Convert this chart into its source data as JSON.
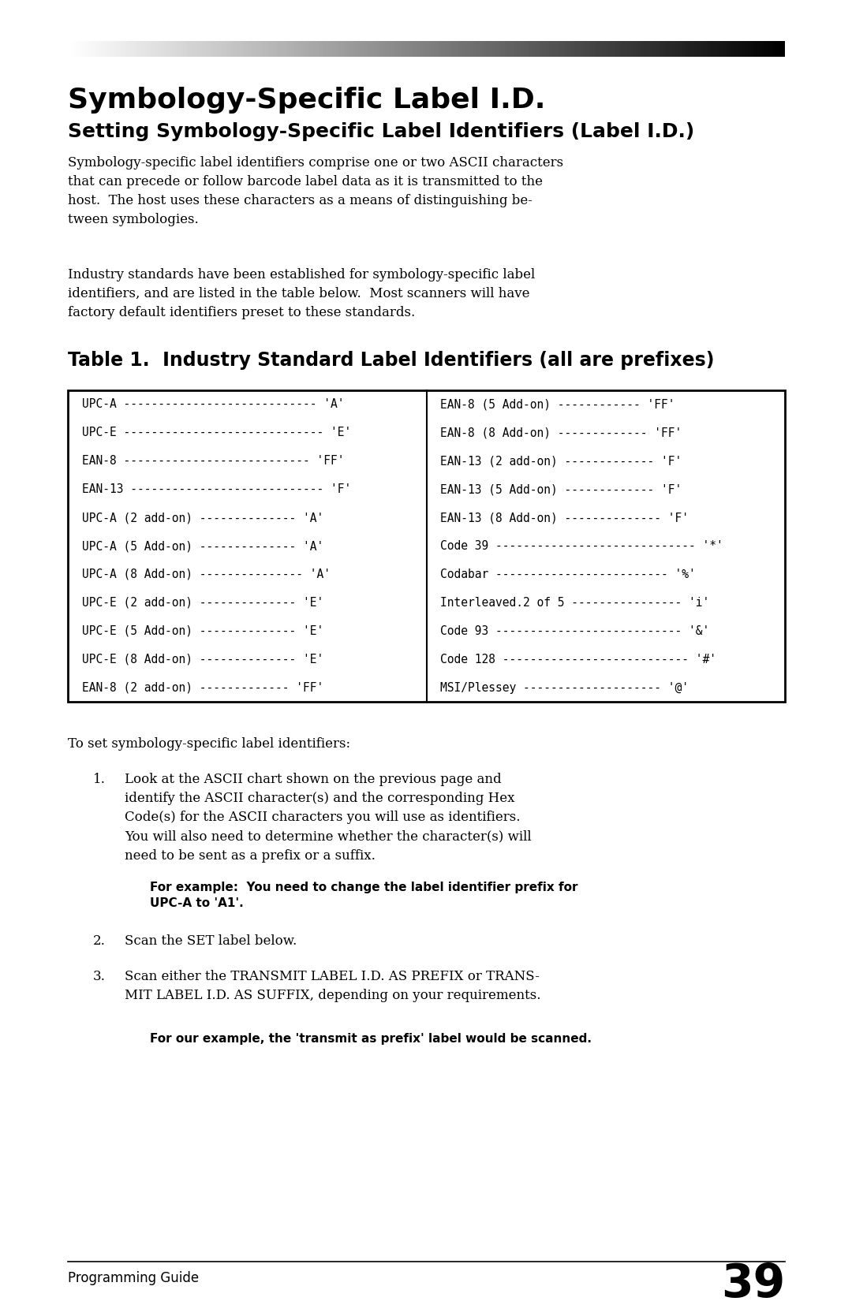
{
  "bg_color": "#ffffff",
  "title_main": "Symbology-Specific Label I.D.",
  "title_sub": "Setting Symbology-Specific Label Identifiers (Label I.D.)",
  "body_text1": "Symbology-specific label identifiers comprise one or two ASCII characters\nthat can precede or follow barcode label data as it is transmitted to the\nhost.  The host uses these characters as a means of distinguishing be-\ntween symbologies.",
  "body_text2": "Industry standards have been established for symbology-specific label\nidentifiers, and are listed in the table below.  Most scanners will have\nfactory default identifiers preset to these standards.",
  "table_title": "Table 1.  Industry Standard Label Identifiers (all are prefixes)",
  "left_col": [
    [
      "UPC-A",
      "----------------------------",
      "'A'"
    ],
    [
      "UPC-E",
      "-----------------------------",
      "'E'"
    ],
    [
      "EAN-8",
      "---------------------------",
      "'FF'"
    ],
    [
      "EAN-13",
      "----------------------------",
      "'F'"
    ],
    [
      "UPC-A (2 add-on)",
      "--------------",
      "'A'"
    ],
    [
      "UPC-A (5 Add-on)",
      "--------------",
      "'A'"
    ],
    [
      "UPC-A (8 Add-on)",
      "---------------",
      "'A'"
    ],
    [
      "UPC-E (2 add-on)",
      "--------------",
      "'E'"
    ],
    [
      "UPC-E (5 Add-on)",
      "--------------",
      "'E'"
    ],
    [
      "UPC-E (8 Add-on)",
      "--------------",
      "'E'"
    ],
    [
      "EAN-8 (2 add-on)",
      "-------------",
      "'FF'"
    ]
  ],
  "right_col": [
    [
      "EAN-8 (5 Add-on)",
      "------------",
      "'FF'"
    ],
    [
      "EAN-8 (8 Add-on)",
      "-------------",
      "'FF'"
    ],
    [
      "EAN-13 (2 add-on)",
      "-------------",
      "'F'"
    ],
    [
      "EAN-13 (5 Add-on)",
      "-------------",
      "'F'"
    ],
    [
      "EAN-13 (8 Add-on)",
      "--------------",
      "'F'"
    ],
    [
      "Code 39",
      "-----------------------------",
      "'*'"
    ],
    [
      "Codabar",
      "-------------------------",
      "'%'"
    ],
    [
      "Interleaved.2 of 5",
      "----------------",
      "'i'"
    ],
    [
      "Code 93",
      "---------------------------",
      "'&'"
    ],
    [
      "Code 128",
      "---------------------------",
      "'#'"
    ],
    [
      "MSI/Plessey",
      "--------------------",
      "'@'"
    ]
  ],
  "body_text3": "To set symbology-specific label identifiers:",
  "step1_text": "Look at the ASCII chart shown on the previous page and\nidentify the ASCII character(s) and the corresponding Hex\nCode(s) for the ASCII characters you will use as identifiers.\nYou will also need to determine whether the character(s) will\nneed to be sent as a prefix or a suffix.",
  "step1_example_line1": "For example:  You need to change the label identifier prefix for",
  "step1_example_line2": "UPC-A to 'A1'.",
  "step2_text": "Scan the SET label below.",
  "step3_text": "Scan either the TRANSMIT LABEL I.D. AS PREFIX or TRANS-\nMIT LABEL I.D. AS SUFFIX, depending on your requirements.",
  "step3_example": "For our example, the 'transmit as prefix' label would be scanned.",
  "footer_text": "Programming Guide",
  "page_number": "39"
}
